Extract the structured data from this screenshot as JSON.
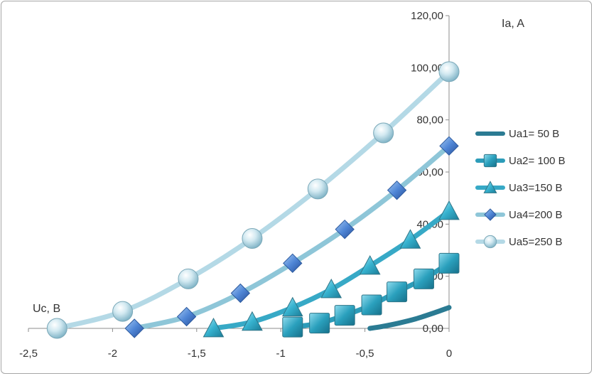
{
  "chart_data": {
    "type": "scatter",
    "title": "",
    "xlabel": "Uc, B",
    "ylabel": "Ia, A",
    "xlim": [
      -2.5,
      0
    ],
    "ylim": [
      0,
      120
    ],
    "x_ticks": [
      "-2,5",
      "-2",
      "-1,5",
      "-1",
      "-0,5",
      "0"
    ],
    "y_ticks": [
      "0,00",
      "20,00",
      "40,00",
      "60,00",
      "80,00",
      "100,00",
      "120,00"
    ],
    "grid": false,
    "legend_position": "right",
    "series": [
      {
        "name": "Ua1= 50 B",
        "marker": "none",
        "color": "#2b7b93",
        "x": [
          -0.47,
          -0.4,
          -0.3,
          -0.2,
          -0.1,
          0
        ],
        "y": [
          0,
          0.7,
          2.0,
          3.6,
          5.7,
          8.0
        ]
      },
      {
        "name": "Ua2= 100 B",
        "marker": "square",
        "color": "#2c9cb9",
        "x": [
          -0.93,
          -0.77,
          -0.62,
          -0.46,
          -0.31,
          -0.15,
          0
        ],
        "y": [
          0.5,
          2.0,
          5.0,
          9.0,
          14.0,
          19.0,
          25.0
        ]
      },
      {
        "name": "Ua3=150 B",
        "marker": "triangle",
        "color": "#37a9c6",
        "x": [
          -1.4,
          -1.17,
          -0.93,
          -0.7,
          -0.47,
          -0.23,
          0
        ],
        "y": [
          0,
          2.5,
          8.0,
          15.0,
          24.0,
          34.0,
          45.0
        ]
      },
      {
        "name": "Ua4=200 B",
        "marker": "diamond",
        "color": "#8ec6d8",
        "x": [
          -1.87,
          -1.56,
          -1.24,
          -0.93,
          -0.62,
          -0.31,
          0
        ],
        "y": [
          0,
          4.5,
          13.5,
          25.0,
          38.0,
          53.0,
          70.0
        ]
      },
      {
        "name": "Ua5=250 B",
        "marker": "circle",
        "color": "#b4d9e6",
        "x": [
          -2.33,
          -1.94,
          -1.55,
          -1.17,
          -0.78,
          -0.39,
          0
        ],
        "y": [
          0,
          6.5,
          19.0,
          34.5,
          53.5,
          75.0,
          98.5
        ]
      }
    ]
  }
}
